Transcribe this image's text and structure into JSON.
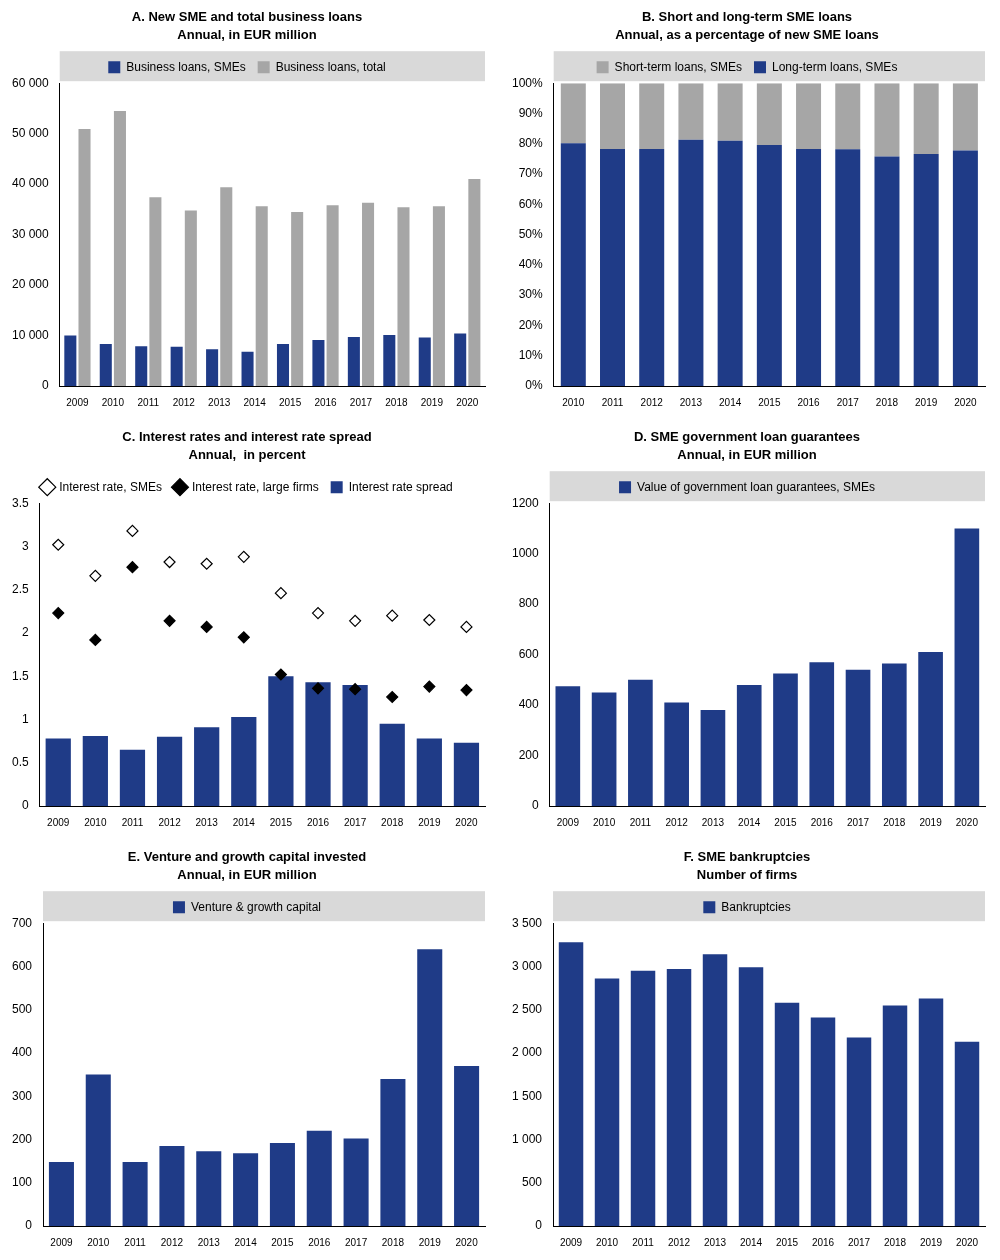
{
  "chart_data": [
    {
      "type": "bar",
      "title": "A. New SME and total business loans",
      "subtitle": "Annual, in EUR million",
      "categories": [
        "2009",
        "2010",
        "2011",
        "2012",
        "2013",
        "2014",
        "2015",
        "2016",
        "2017",
        "2018",
        "2019",
        "2020"
      ],
      "series": [
        {
          "name": "Business loans, SMEs",
          "color": "#1f3b87",
          "values": [
            10000,
            8300,
            7900,
            7800,
            7300,
            6800,
            8300,
            9100,
            9700,
            10100,
            9600,
            10400
          ]
        },
        {
          "name": "Business loans, total",
          "color": "#a6a6a6",
          "values": [
            50900,
            54500,
            37400,
            34800,
            39400,
            35600,
            34500,
            35800,
            36300,
            35400,
            35600,
            41000
          ]
        }
      ],
      "ylim": [
        0,
        60000
      ],
      "yticks": [
        0,
        {
          "value": 10000,
          "label": "10 000"
        },
        {
          "value": 20000,
          "label": "20 000"
        },
        {
          "value": 30000,
          "label": "30 000"
        },
        {
          "value": 40000,
          "label": "40 000"
        },
        {
          "value": 50000,
          "label": "50 000"
        },
        {
          "value": 60000,
          "label": "60 000"
        }
      ],
      "grid": false,
      "legend": "top"
    },
    {
      "type": "bar",
      "title": "B. Short and long-term SME loans",
      "subtitle": "Annual, as a percentage of new SME loans",
      "categories": [
        "2010",
        "2011",
        "2012",
        "2013",
        "2014",
        "2015",
        "2016",
        "2017",
        "2018",
        "2019",
        "2020"
      ],
      "series": [
        {
          "name": "Long-term loans, SMEs",
          "color": "#1f3b87",
          "values": [
            80.2,
            78.3,
            78.3,
            81.3,
            81.0,
            79.6,
            78.3,
            78.2,
            75.8,
            76.6,
            77.8
          ]
        },
        {
          "name": "Short-term loans, SMEs",
          "color": "#a6a6a6",
          "values": [
            19.8,
            21.7,
            21.7,
            18.7,
            19.0,
            20.4,
            21.7,
            21.8,
            24.2,
            23.4,
            22.2
          ]
        }
      ],
      "ylim": [
        0,
        100
      ],
      "yticks": [
        {
          "value": 0,
          "label": "0%"
        },
        {
          "value": 10,
          "label": "10%"
        },
        {
          "value": 20,
          "label": "20%"
        },
        {
          "value": 30,
          "label": "30%"
        },
        {
          "value": 40,
          "label": "40%"
        },
        {
          "value": 50,
          "label": "50%"
        },
        {
          "value": 60,
          "label": "60%"
        },
        {
          "value": 70,
          "label": "70%"
        },
        {
          "value": 80,
          "label": "80%"
        },
        {
          "value": 90,
          "label": "90%"
        },
        {
          "value": 100,
          "label": "100%"
        }
      ],
      "stacked": true,
      "grid": false,
      "legend": "top"
    },
    {
      "type": "bar",
      "title": "C. Interest rates and interest rate spread",
      "subtitle": "Annual,  in percent",
      "categories": [
        "2009",
        "2010",
        "2011",
        "2012",
        "2013",
        "2014",
        "2015",
        "2016",
        "2017",
        "2018",
        "2019",
        "2020"
      ],
      "series": [
        {
          "name": "Interest rate spread",
          "type": "bar",
          "color": "#1f3b87",
          "values": [
            0.78,
            0.81,
            0.65,
            0.8,
            0.91,
            1.03,
            1.5,
            1.43,
            1.4,
            0.95,
            0.78,
            0.73
          ]
        },
        {
          "name": "Interest rate, SMEs",
          "type": "scatter",
          "marker": "open_diamond",
          "color": "#000000",
          "values": [
            3.02,
            2.66,
            3.18,
            2.82,
            2.8,
            2.88,
            2.46,
            2.23,
            2.14,
            2.2,
            2.15,
            2.07
          ]
        },
        {
          "name": "Interest rate, large firms",
          "type": "scatter",
          "marker": "diamond",
          "color": "#000000",
          "values": [
            2.23,
            1.92,
            2.76,
            2.14,
            2.07,
            1.95,
            1.52,
            1.36,
            1.35,
            1.26,
            1.38,
            1.34
          ]
        }
      ],
      "ylim": [
        0,
        3.5
      ],
      "yticks": [
        0,
        0.5,
        1,
        1.5,
        2,
        2.5,
        3,
        3.5
      ],
      "grid": false,
      "legend": "top"
    },
    {
      "type": "bar",
      "title": "D. SME government loan guarantees",
      "subtitle": "Annual, in EUR million",
      "categories": [
        "2009",
        "2010",
        "2011",
        "2012",
        "2013",
        "2014",
        "2015",
        "2016",
        "2017",
        "2018",
        "2019",
        "2020"
      ],
      "series": [
        {
          "name": "Value of government loan guarantees, SMEs",
          "color": "#1f3b87",
          "values": [
            475,
            450,
            500,
            410,
            380,
            480,
            525,
            570,
            540,
            565,
            610,
            1100
          ]
        }
      ],
      "ylim": [
        0,
        1200
      ],
      "yticks": [
        0,
        200,
        400,
        600,
        800,
        1000,
        1200
      ],
      "grid": false,
      "legend": "top"
    },
    {
      "type": "bar",
      "title": "E. Venture and growth capital invested",
      "subtitle": "Annual, in EUR million",
      "categories": [
        "2009",
        "2010",
        "2011",
        "2012",
        "2013",
        "2014",
        "2015",
        "2016",
        "2017",
        "2018",
        "2019",
        "2020"
      ],
      "series": [
        {
          "name": "Venture & growth capital",
          "color": "#1f3b87",
          "values": [
            148,
            350,
            148,
            185,
            173,
            168,
            192,
            220,
            202,
            340,
            640,
            370
          ]
        }
      ],
      "ylim": [
        0,
        700
      ],
      "yticks": [
        0,
        100,
        200,
        300,
        400,
        500,
        600,
        700
      ],
      "grid": false,
      "legend": "top"
    },
    {
      "type": "bar",
      "title": "F. SME bankruptcies",
      "subtitle": "Number of firms",
      "categories": [
        "2009",
        "2010",
        "2011",
        "2012",
        "2013",
        "2014",
        "2015",
        "2016",
        "2017",
        "2018",
        "2019",
        "2020"
      ],
      "series": [
        {
          "name": "Bankruptcies",
          "color": "#1f3b87",
          "values": [
            3280,
            2860,
            2950,
            2970,
            3140,
            2990,
            2580,
            2410,
            2180,
            2550,
            2630,
            2130
          ]
        }
      ],
      "ylim": [
        0,
        3500
      ],
      "yticks": [
        0,
        500,
        {
          "value": 1000,
          "label": "1 000"
        },
        {
          "value": 1500,
          "label": "1 500"
        },
        {
          "value": 2000,
          "label": "2 000"
        },
        {
          "value": 2500,
          "label": "2 500"
        },
        {
          "value": 3000,
          "label": "3 000"
        },
        {
          "value": 3500,
          "label": "3 500"
        }
      ],
      "grid": false,
      "legend": "top"
    }
  ]
}
